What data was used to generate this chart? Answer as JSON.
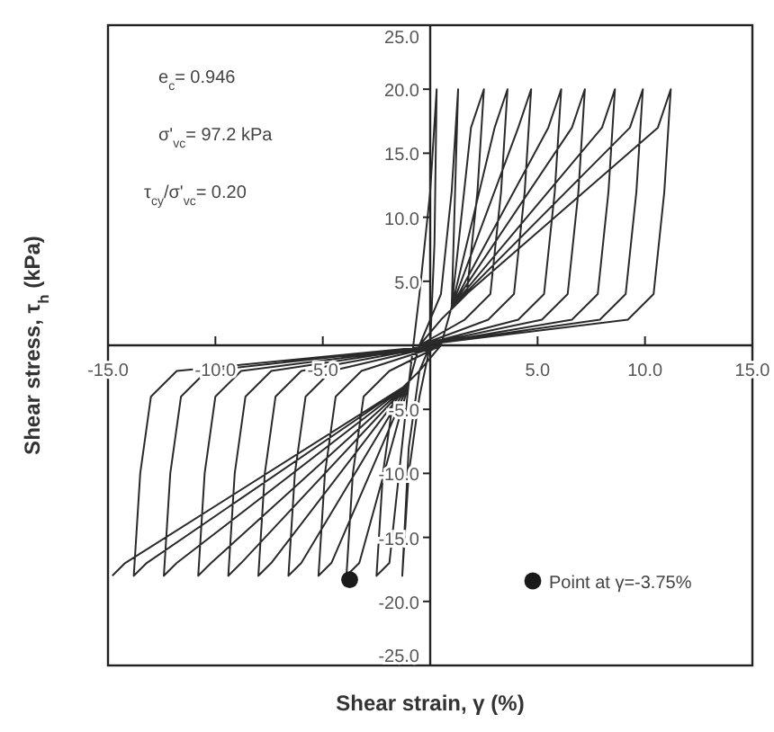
{
  "chart_data": {
    "type": "line",
    "xlabel": "Shear strain, γ (%)",
    "ylabel": "Shear stress, τ$_{h}$ (kPa)",
    "annotations": [
      "e$_{c}$= 0.946",
      "σ'$_{vc}$=  97.2 kPa",
      "τ$_{cy}$/σ'$_{vc}$=  0.20"
    ],
    "xlim": [
      -15,
      15
    ],
    "xticks": [
      {
        "value": -15,
        "label": "-15.0"
      },
      {
        "value": -10,
        "label": "-10.0"
      },
      {
        "value": -5,
        "label": "-5.0"
      },
      {
        "value": 5,
        "label": "5.0"
      },
      {
        "value": 10,
        "label": "10.0"
      },
      {
        "value": 15,
        "label": "15.0"
      }
    ],
    "ylim": [
      -25,
      25
    ],
    "yticks": [
      {
        "value": -25,
        "label": "-25.0"
      },
      {
        "value": -20,
        "label": "-20.0"
      },
      {
        "value": -15,
        "label": "-15.0"
      },
      {
        "value": -10,
        "label": "-10.0"
      },
      {
        "value": -5,
        "label": "-5.0"
      },
      {
        "value": 5,
        "label": "5.0"
      },
      {
        "value": 10,
        "label": "10.0"
      },
      {
        "value": 15,
        "label": "15.0"
      },
      {
        "value": 20,
        "label": "20.0"
      },
      {
        "value": 25,
        "label": "25.0"
      }
    ],
    "grid": false,
    "legend": "bottom right",
    "series": [
      {
        "color": "#2a2a2a",
        "x": [
          0,
          -0.5,
          -1.0,
          -1.3,
          -1.0,
          -0.5,
          0,
          0.2,
          0.3,
          0.0,
          -0.5,
          -1.0,
          -1.9,
          -2.5,
          -2.2,
          -1.7,
          -0.5,
          0.5,
          1.0,
          1.3,
          1.0,
          0.5,
          -0.5,
          -1,
          -3.3,
          -3.9,
          -3.6,
          -3.1,
          -1.9,
          0.5,
          1,
          1.9,
          2.5,
          2.2,
          1.7,
          0.5,
          -0.5,
          -1,
          -4.6,
          -5.2,
          -4.9,
          -4.4,
          -3.2,
          0.5,
          1,
          3.0,
          3.6,
          3.3,
          2.8,
          1.6,
          -0.5,
          -1,
          -6.0,
          -6.6,
          -6.3,
          -5.8,
          -4.6,
          0.5,
          1,
          4.1,
          4.7,
          4.4,
          3.9,
          2.7,
          -0.5,
          -1,
          -7.4,
          -8.0,
          -7.7,
          -7.2,
          -6.0,
          0.5,
          1,
          5.5,
          6.1,
          5.8,
          5.3,
          4.1,
          -0.5,
          -1,
          -8.8,
          -9.4,
          -9.1,
          -8.6,
          -7.4,
          0.5,
          1,
          6.6,
          7.2,
          6.9,
          6.4,
          5.2,
          -0.5,
          -1,
          -10.2,
          -10.8,
          -10.5,
          -10.0,
          -8.8,
          0.5,
          1,
          8.0,
          8.6,
          8.3,
          7.8,
          6.6,
          -0.5,
          -1,
          -11.8,
          -12.4,
          -12.1,
          -11.6,
          -10.4,
          0.5,
          1,
          9.3,
          9.9,
          9.6,
          9.1,
          7.9,
          -0.5,
          -1,
          -13.2,
          -13.8,
          -13.5,
          -13.0,
          -11.8,
          0.5,
          1,
          10.6,
          11.2,
          10.9,
          10.4,
          9.2,
          -0.5,
          -1,
          -14.2,
          -14.8
        ],
        "values": [
          0,
          -2,
          -8,
          -18,
          -10,
          -4,
          0,
          8,
          20,
          12,
          4,
          -3,
          -17,
          -18,
          -10,
          -4,
          -2,
          0,
          3,
          20,
          12,
          4,
          0,
          -3,
          -17,
          -18,
          -10,
          -4,
          -2,
          0,
          3,
          17,
          20,
          12,
          4,
          2,
          0,
          -3,
          -17,
          -18,
          -10,
          -4,
          -2,
          0,
          3,
          17,
          20,
          12,
          4,
          2,
          0,
          -3,
          -17,
          -18,
          -10,
          -4,
          -2,
          0,
          3,
          17,
          20,
          12,
          4,
          2,
          0,
          -3,
          -17,
          -18,
          -10,
          -4,
          -2,
          0,
          3,
          17,
          20,
          12,
          4,
          2,
          0,
          -3,
          -17,
          -18,
          -10,
          -4,
          -2,
          0,
          3,
          17,
          20,
          12,
          4,
          2,
          0,
          -3,
          -17,
          -18,
          -10,
          -4,
          -2,
          0,
          3,
          17,
          20,
          12,
          4,
          2,
          0,
          -3,
          -17,
          -18,
          -10,
          -4,
          -2,
          0,
          3,
          17,
          20,
          12,
          4,
          2,
          0,
          -3,
          -17,
          -18,
          -10,
          -4,
          -2,
          0,
          3,
          17,
          20,
          12,
          4,
          2,
          0,
          -3,
          -17,
          -18
        ]
      },
      {
        "type": "scatter",
        "name": "Point at γ=-3.75%",
        "color": "#1a1a1a",
        "marker": "circle",
        "x": [
          -3.75
        ],
        "values": [
          -18.3
        ]
      }
    ]
  }
}
